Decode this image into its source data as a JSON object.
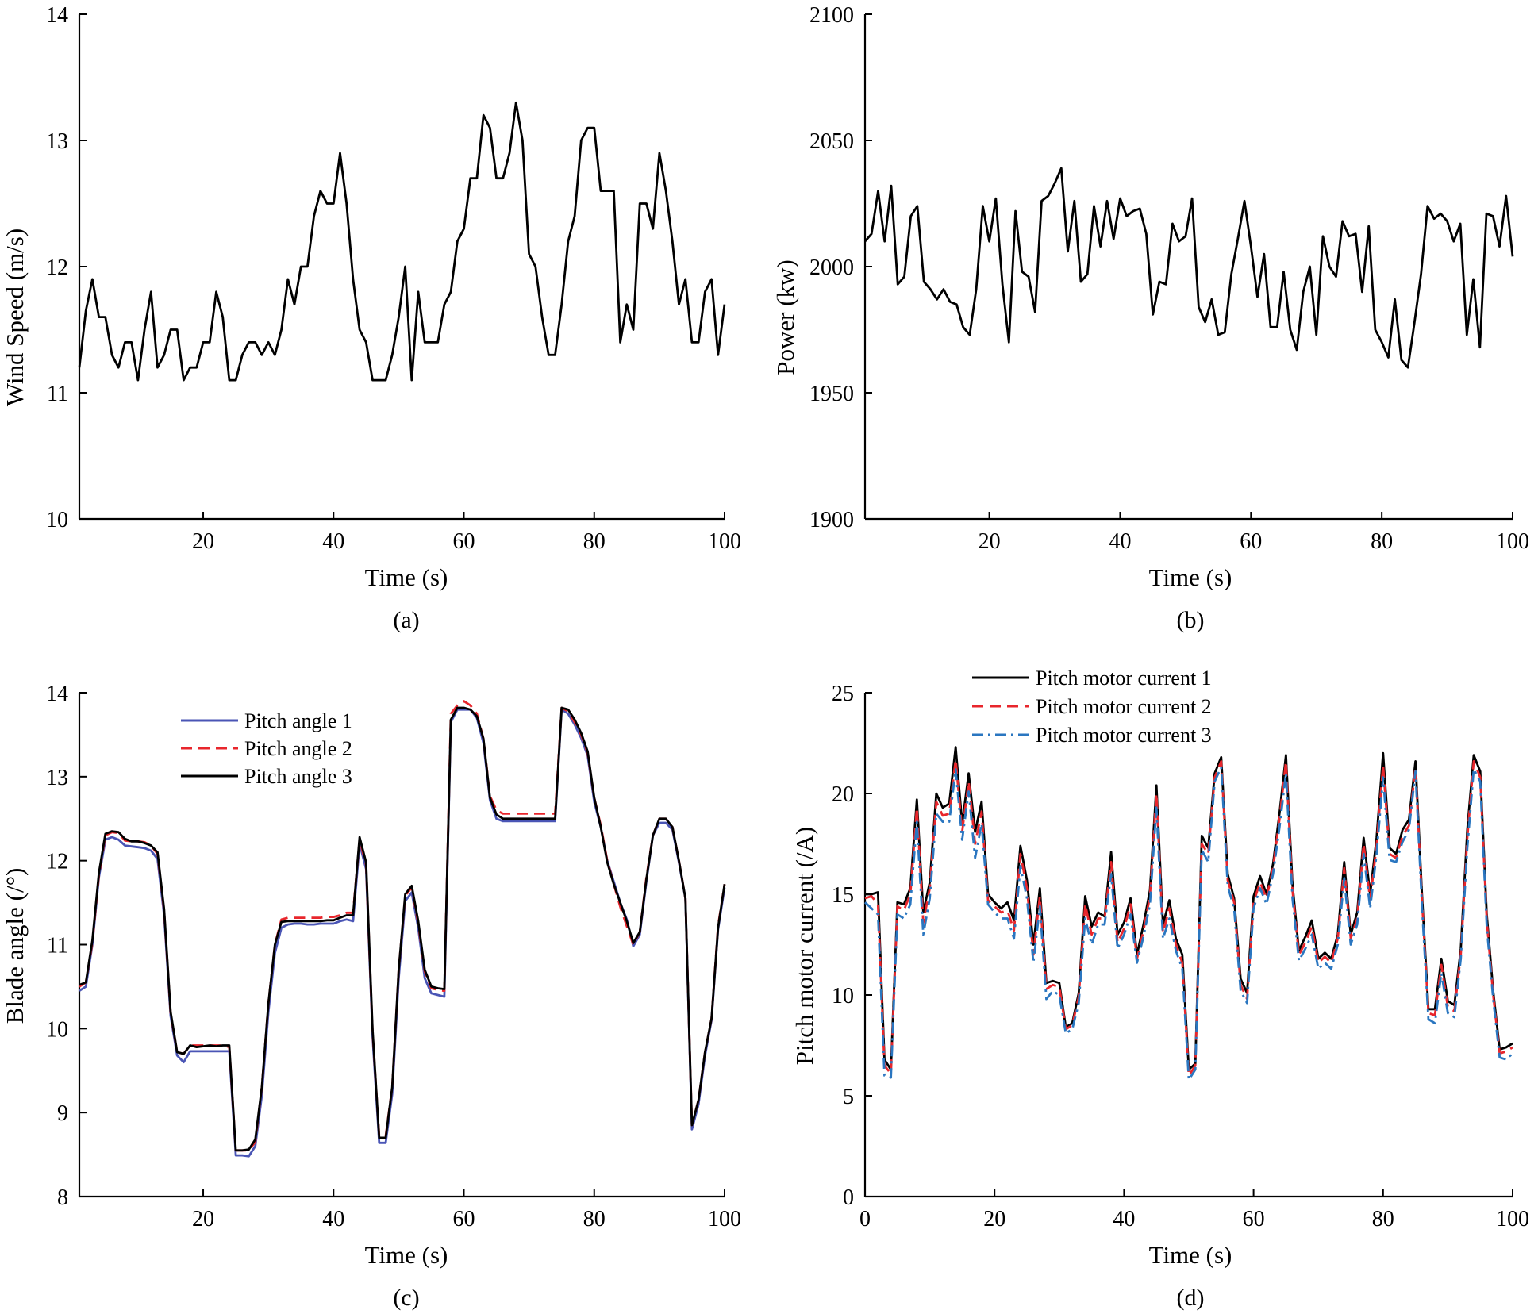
{
  "chart_data": [
    {
      "type": "line",
      "caption": "(a)",
      "xlabel": "Time (s)",
      "ylabel": "Wind Speed (m/s)",
      "xlim": [
        1,
        100
      ],
      "ylim": [
        10,
        14
      ],
      "xticks": [
        20,
        40,
        60,
        80,
        100
      ],
      "yticks": [
        10,
        11,
        12,
        13,
        14
      ],
      "x_start": 1,
      "x_step": 1,
      "series": [
        {
          "name": "Wind speed",
          "color": "#000000",
          "dash": "",
          "values": [
            11.2,
            11.65,
            11.9,
            11.6,
            11.6,
            11.3,
            11.2,
            11.4,
            11.4,
            11.1,
            11.5,
            11.8,
            11.2,
            11.3,
            11.5,
            11.5,
            11.1,
            11.2,
            11.2,
            11.4,
            11.4,
            11.8,
            11.6,
            11.1,
            11.1,
            11.3,
            11.4,
            11.4,
            11.3,
            11.4,
            11.3,
            11.5,
            11.9,
            11.7,
            12.0,
            12.0,
            12.4,
            12.6,
            12.5,
            12.5,
            12.9,
            12.5,
            11.9,
            11.5,
            11.4,
            11.1,
            11.1,
            11.1,
            11.3,
            11.6,
            12.0,
            11.1,
            11.8,
            11.4,
            11.4,
            11.4,
            11.7,
            11.8,
            12.2,
            12.3,
            12.7,
            12.7,
            13.2,
            13.1,
            12.7,
            12.7,
            12.9,
            13.3,
            13.0,
            12.1,
            12.0,
            11.6,
            11.3,
            11.3,
            11.7,
            12.2,
            12.4,
            13.0,
            13.1,
            13.1,
            12.6,
            12.6,
            12.6,
            11.4,
            11.7,
            11.5,
            12.5,
            12.5,
            12.3,
            12.9,
            12.6,
            12.2,
            11.7,
            11.9,
            11.4,
            11.4,
            11.8,
            11.9,
            11.3,
            11.7
          ]
        }
      ]
    },
    {
      "type": "line",
      "caption": "(b)",
      "xlabel": "Time (s)",
      "ylabel": "Power (kw)",
      "xlim": [
        1,
        100
      ],
      "ylim": [
        1900,
        2100
      ],
      "xticks": [
        20,
        40,
        60,
        80,
        100
      ],
      "yticks": [
        1900,
        1950,
        2000,
        2050,
        2100
      ],
      "x_start": 1,
      "x_step": 1,
      "series": [
        {
          "name": "Power",
          "color": "#000000",
          "dash": "",
          "values": [
            2010,
            2013,
            2030,
            2010,
            2032,
            1993,
            1996,
            2020,
            2024,
            1994,
            1991,
            1987,
            1991,
            1986,
            1985,
            1976,
            1973,
            1991,
            2024,
            2010,
            2027,
            1993,
            1970,
            2022,
            1998,
            1996,
            1982,
            2026,
            2028,
            2033,
            2039,
            2006,
            2026,
            1994,
            1997,
            2024,
            2008,
            2026,
            2011,
            2027,
            2020,
            2022,
            2023,
            2013,
            1981,
            1994,
            1993,
            2017,
            2010,
            2012,
            2027,
            1984,
            1978,
            1987,
            1973,
            1974,
            1997,
            2011,
            2026,
            2008,
            1988,
            2005,
            1976,
            1976,
            1998,
            1975,
            1967,
            1990,
            2000,
            1973,
            2012,
            2000,
            1996,
            2018,
            2012,
            2013,
            1990,
            2016,
            1975,
            1970,
            1964,
            1987,
            1963,
            1960,
            1978,
            1997,
            2024,
            2019,
            2021,
            2018,
            2010,
            2017,
            1973,
            1995,
            1968,
            2021,
            2020,
            2008,
            2028,
            2004
          ]
        }
      ]
    },
    {
      "type": "line",
      "caption": "(c)",
      "xlabel": "Time (s)",
      "ylabel": "Blade angle (/°)",
      "xlim": [
        1,
        100
      ],
      "ylim": [
        8,
        14
      ],
      "xticks": [
        20,
        40,
        60,
        80,
        100
      ],
      "yticks": [
        8,
        9,
        10,
        11,
        12,
        13,
        14
      ],
      "x_start": 1,
      "x_step": 1,
      "legend": "top-left",
      "series": [
        {
          "name": "Pitch angle 1",
          "color": "#4a55b5",
          "dash": "",
          "values": [
            10.45,
            10.5,
            11.0,
            11.8,
            12.25,
            12.28,
            12.25,
            12.18,
            12.17,
            12.16,
            12.15,
            12.12,
            12.02,
            11.35,
            10.15,
            9.68,
            9.6,
            9.73,
            9.73,
            9.73,
            9.73,
            9.73,
            9.73,
            9.73,
            8.49,
            8.49,
            8.48,
            8.6,
            9.2,
            10.2,
            10.9,
            11.2,
            11.24,
            11.25,
            11.25,
            11.24,
            11.24,
            11.25,
            11.25,
            11.25,
            11.28,
            11.3,
            11.28,
            12.2,
            11.9,
            9.9,
            8.64,
            8.64,
            9.22,
            10.6,
            11.52,
            11.62,
            11.2,
            10.6,
            10.42,
            10.4,
            10.38,
            13.65,
            13.8,
            13.8,
            13.8,
            13.7,
            13.4,
            12.72,
            12.5,
            12.47,
            12.47,
            12.47,
            12.47,
            12.47,
            12.47,
            12.47,
            12.47,
            12.47,
            13.8,
            13.75,
            13.62,
            13.46,
            13.25,
            12.7,
            12.4,
            12.0,
            11.75,
            11.5,
            11.3,
            10.98,
            11.12,
            11.75,
            12.3,
            12.45,
            12.45,
            12.37,
            11.98,
            11.55,
            8.8,
            9.1,
            9.68,
            10.1,
            11.18,
            11.68
          ]
        },
        {
          "name": "Pitch angle 2",
          "color": "#e8262c",
          "dash": "14 8",
          "values": [
            10.5,
            10.55,
            11.02,
            11.82,
            12.3,
            12.34,
            12.33,
            12.24,
            12.23,
            12.23,
            12.22,
            12.18,
            12.08,
            11.4,
            10.18,
            9.72,
            9.7,
            9.8,
            9.8,
            9.8,
            9.8,
            9.8,
            9.8,
            9.78,
            8.55,
            8.55,
            8.55,
            8.65,
            9.3,
            10.3,
            11.0,
            11.3,
            11.32,
            11.32,
            11.32,
            11.32,
            11.32,
            11.32,
            11.33,
            11.33,
            11.35,
            11.38,
            11.38,
            12.25,
            11.95,
            9.95,
            8.72,
            8.72,
            9.3,
            10.7,
            11.58,
            11.68,
            11.25,
            10.68,
            10.48,
            10.46,
            10.45,
            13.75,
            13.85,
            13.9,
            13.85,
            13.75,
            13.45,
            12.77,
            12.6,
            12.56,
            12.56,
            12.56,
            12.56,
            12.56,
            12.56,
            12.56,
            12.56,
            12.56,
            13.82,
            13.78,
            13.65,
            13.5,
            13.28,
            12.75,
            12.42,
            12.0,
            11.72,
            11.45,
            11.22,
            11.0,
            11.15,
            11.8,
            12.3,
            12.5,
            12.5,
            12.4,
            12.0,
            11.55,
            8.85,
            9.15,
            9.72,
            10.12,
            11.22,
            11.72
          ]
        },
        {
          "name": "Pitch angle 3",
          "color": "#000000",
          "dash": "",
          "values": [
            10.52,
            10.55,
            11.05,
            11.85,
            12.32,
            12.35,
            12.34,
            12.26,
            12.23,
            12.23,
            12.21,
            12.18,
            12.1,
            11.42,
            10.2,
            9.72,
            9.7,
            9.8,
            9.78,
            9.79,
            9.8,
            9.79,
            9.8,
            9.8,
            8.55,
            8.55,
            8.56,
            8.68,
            9.3,
            10.3,
            11.0,
            11.27,
            11.28,
            11.28,
            11.28,
            11.28,
            11.28,
            11.28,
            11.29,
            11.29,
            11.32,
            11.35,
            11.35,
            12.28,
            11.98,
            9.98,
            8.7,
            8.7,
            9.3,
            10.7,
            11.6,
            11.7,
            11.28,
            10.7,
            10.5,
            10.48,
            10.47,
            13.68,
            13.82,
            13.82,
            13.8,
            13.72,
            13.45,
            12.75,
            12.55,
            12.5,
            12.5,
            12.5,
            12.5,
            12.5,
            12.5,
            12.5,
            12.5,
            12.5,
            13.82,
            13.8,
            13.68,
            13.52,
            13.3,
            12.75,
            12.4,
            11.98,
            11.72,
            11.5,
            11.28,
            11.02,
            11.15,
            11.78,
            12.3,
            12.5,
            12.5,
            12.4,
            12.0,
            11.55,
            8.85,
            9.15,
            9.72,
            10.12,
            11.2,
            11.72
          ]
        }
      ]
    },
    {
      "type": "line",
      "caption": "(d)",
      "xlabel": "Time (s)",
      "ylabel": "Pitch motor current (/A)",
      "xlim": [
        0,
        100
      ],
      "ylim": [
        0,
        25
      ],
      "xticks": [
        0,
        20,
        40,
        60,
        80,
        100
      ],
      "yticks": [
        0,
        5,
        10,
        15,
        20,
        25
      ],
      "x_start": 0,
      "x_step": 1,
      "legend": "top-center",
      "series": [
        {
          "name": "Pitch motor current 1",
          "color": "#000000",
          "dash": "",
          "values": [
            15.0,
            15.0,
            15.1,
            6.8,
            6.3,
            14.6,
            14.5,
            15.3,
            19.7,
            14.1,
            15.6,
            20.0,
            19.3,
            19.5,
            22.3,
            18.5,
            21.0,
            18.1,
            19.6,
            15.0,
            14.6,
            14.3,
            14.6,
            13.7,
            17.4,
            15.7,
            12.5,
            15.3,
            10.6,
            10.7,
            10.6,
            8.4,
            8.6,
            10.1,
            14.9,
            13.4,
            14.1,
            13.9,
            17.1,
            13.0,
            13.6,
            14.8,
            12.0,
            13.5,
            15.2,
            20.4,
            13.5,
            14.7,
            12.8,
            12.0,
            6.3,
            6.6,
            17.9,
            17.3,
            21.0,
            21.8,
            16.0,
            14.8,
            10.8,
            10.1,
            14.9,
            15.9,
            15.0,
            16.5,
            19.0,
            21.9,
            15.5,
            12.2,
            12.9,
            13.7,
            11.8,
            12.1,
            11.8,
            13.0,
            16.6,
            13.0,
            14.1,
            17.8,
            15.0,
            17.8,
            22.0,
            17.3,
            17.0,
            18.2,
            18.7,
            21.6,
            15.0,
            9.3,
            9.3,
            11.8,
            9.7,
            9.5,
            12.3,
            18.2,
            21.9,
            21.1,
            14.0,
            10.2,
            7.3,
            7.4,
            7.6
          ]
        },
        {
          "name": "Pitch motor current 2",
          "color": "#e8262c",
          "dash": "14 8",
          "values": [
            14.8,
            14.9,
            14.5,
            6.5,
            6.1,
            14.4,
            14.2,
            15.0,
            19.3,
            13.6,
            15.3,
            19.6,
            18.9,
            19.0,
            21.7,
            18.1,
            20.6,
            17.5,
            19.1,
            14.7,
            14.4,
            14.1,
            14.2,
            13.2,
            17.0,
            15.3,
            12.0,
            14.9,
            10.3,
            10.5,
            10.4,
            8.3,
            8.5,
            9.9,
            14.5,
            13.0,
            13.8,
            13.8,
            16.6,
            12.6,
            13.3,
            14.5,
            11.8,
            13.2,
            14.9,
            20.0,
            13.1,
            14.3,
            12.5,
            11.6,
            6.0,
            6.5,
            17.5,
            17.0,
            20.8,
            21.6,
            15.7,
            14.6,
            10.5,
            9.8,
            14.6,
            15.6,
            14.8,
            16.3,
            18.7,
            21.6,
            15.2,
            12.0,
            12.6,
            13.4,
            11.6,
            11.9,
            11.6,
            12.8,
            16.3,
            12.8,
            13.8,
            17.5,
            14.7,
            17.4,
            21.4,
            17.0,
            16.8,
            17.9,
            18.4,
            21.3,
            14.7,
            9.1,
            9.0,
            11.5,
            9.4,
            9.2,
            12.0,
            17.8,
            21.6,
            20.8,
            13.7,
            10.0,
            7.1,
            7.2,
            7.4
          ]
        },
        {
          "name": "Pitch motor current 3",
          "color": "#2a76c0",
          "dash": "14 6 3 6",
          "values": [
            14.6,
            14.3,
            14.0,
            6.0,
            5.9,
            14.0,
            13.8,
            14.5,
            18.6,
            13.0,
            14.8,
            19.0,
            18.6,
            18.6,
            21.2,
            17.7,
            20.1,
            16.8,
            18.5,
            14.5,
            14.1,
            13.8,
            13.8,
            12.8,
            16.4,
            14.8,
            11.6,
            14.4,
            9.8,
            10.2,
            10.0,
            8.1,
            8.3,
            9.6,
            13.8,
            12.5,
            13.5,
            13.5,
            16.0,
            12.3,
            13.0,
            14.0,
            11.6,
            12.9,
            14.5,
            19.3,
            12.8,
            13.8,
            12.2,
            11.3,
            5.8,
            6.3,
            17.2,
            16.6,
            20.6,
            21.3,
            15.4,
            14.3,
            10.2,
            9.6,
            14.3,
            15.3,
            14.5,
            16.0,
            18.3,
            21.0,
            14.8,
            11.7,
            12.3,
            13.0,
            11.3,
            11.6,
            11.3,
            12.5,
            15.8,
            12.5,
            13.5,
            17.0,
            14.3,
            17.0,
            20.8,
            16.7,
            16.6,
            17.6,
            18.2,
            21.1,
            14.4,
            8.8,
            8.6,
            11.1,
            9.1,
            8.9,
            11.8,
            17.3,
            21.2,
            20.6,
            13.4,
            9.8,
            6.9,
            6.8,
            7.1
          ]
        }
      ]
    }
  ]
}
